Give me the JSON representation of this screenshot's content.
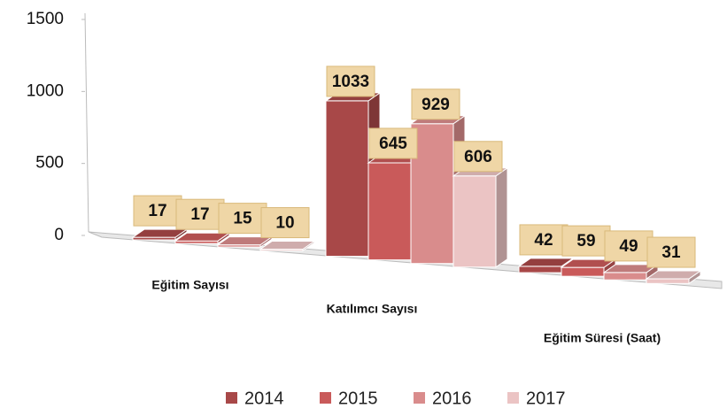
{
  "chart_data": {
    "type": "bar3d",
    "categories": [
      "Eğitim Sayısı",
      "Katılımcı Sayısı",
      "Eğitim Süresi (Saat)"
    ],
    "series": [
      {
        "name": "2014",
        "color": "#a84848",
        "values": [
          17,
          1033,
          42
        ]
      },
      {
        "name": "2015",
        "color": "#c95a5a",
        "values": [
          17,
          645,
          59
        ]
      },
      {
        "name": "2016",
        "color": "#d98c8c",
        "values": [
          15,
          929,
          49
        ]
      },
      {
        "name": "2017",
        "color": "#ebc4c4",
        "values": [
          10,
          606,
          31
        ]
      }
    ],
    "ylim": [
      0,
      1500
    ],
    "yticks": [
      0,
      500,
      1000,
      1500
    ],
    "grid": false,
    "legend": "bottom"
  }
}
